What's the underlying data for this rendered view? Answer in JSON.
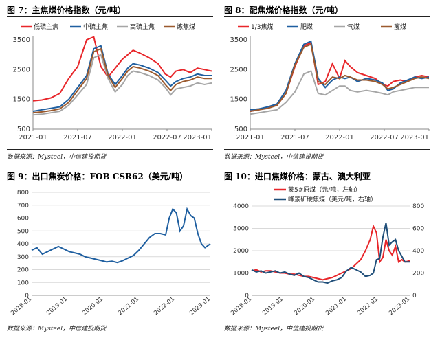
{
  "panels": [
    {
      "title": "图 7：主焦煤价格指数（元/吨）",
      "source": "数据来源：Mysteel，中信建投期货"
    },
    {
      "title": "图 8：配焦煤价格指数（元/吨）",
      "source": "数据来源：Mysteel，中信建投期货"
    },
    {
      "title": "图 9：出口焦炭价格：FOB CSR62（美元/吨）",
      "source": "数据来源：Mysteel，中信建投期货"
    },
    {
      "title": "图 10：进口焦煤价格：蒙古、澳大利亚",
      "source": "数据来源：Mysteel，中信建投期货"
    }
  ],
  "chart_data": [
    {
      "type": "line",
      "x_ticks": [
        "2021-01",
        "2021-07",
        "2022-01",
        "2022-07",
        "2023-01"
      ],
      "ylim": [
        500,
        3500
      ],
      "y_ticks": [
        500,
        1500,
        2500,
        3500
      ],
      "grid": false,
      "legend_position": "top",
      "x": [
        0,
        0.05,
        0.1,
        0.15,
        0.2,
        0.25,
        0.3,
        0.34,
        0.38,
        0.42,
        0.46,
        0.5,
        0.53,
        0.56,
        0.6,
        0.65,
        0.7,
        0.74,
        0.77,
        0.8,
        0.84,
        0.88,
        0.92,
        0.96,
        1.0
      ],
      "series": [
        {
          "name": "低硫主焦",
          "color": "#e8262a",
          "values": [
            1450,
            1480,
            1550,
            1700,
            2200,
            2600,
            3500,
            3600,
            2600,
            2250,
            2550,
            2850,
            3000,
            3150,
            3050,
            2900,
            2700,
            2350,
            2250,
            2450,
            2500,
            2400,
            2550,
            2500,
            2450
          ]
        },
        {
          "name": "中硫主焦",
          "color": "#1f5fa0",
          "values": [
            1100,
            1150,
            1200,
            1250,
            1500,
            1900,
            2300,
            3200,
            3300,
            2350,
            2000,
            2300,
            2550,
            2700,
            2650,
            2550,
            2400,
            2150,
            1950,
            2100,
            2200,
            2250,
            2350,
            2300,
            2300
          ]
        },
        {
          "name": "高硫主焦",
          "color": "#a6a6a6",
          "values": [
            980,
            1000,
            1050,
            1100,
            1300,
            1650,
            2000,
            2900,
            3000,
            2200,
            1750,
            2000,
            2300,
            2450,
            2400,
            2300,
            2150,
            1900,
            1650,
            1850,
            1900,
            1950,
            2050,
            2000,
            2050
          ]
        },
        {
          "name": "炼焦煤",
          "color": "#9b5a2e",
          "values": [
            1050,
            1080,
            1120,
            1180,
            1400,
            1800,
            2200,
            3100,
            3200,
            2300,
            1900,
            2200,
            2450,
            2600,
            2550,
            2450,
            2300,
            2000,
            1800,
            2000,
            2100,
            2150,
            2250,
            2200,
            2200
          ]
        }
      ]
    },
    {
      "type": "line",
      "x_ticks": [
        "2021-01",
        "2021-07",
        "2022-01",
        "2022-07",
        "2023-01"
      ],
      "ylim": [
        500,
        3500
      ],
      "y_ticks": [
        500,
        1500,
        2500,
        3500
      ],
      "grid": false,
      "legend_position": "top",
      "x": [
        0,
        0.05,
        0.1,
        0.15,
        0.2,
        0.25,
        0.3,
        0.34,
        0.38,
        0.42,
        0.46,
        0.5,
        0.53,
        0.56,
        0.6,
        0.65,
        0.7,
        0.74,
        0.77,
        0.8,
        0.84,
        0.88,
        0.92,
        0.96,
        1.0
      ],
      "series": [
        {
          "name": "1/3焦煤",
          "color": "#e8262a",
          "values": [
            1100,
            1150,
            1250,
            1300,
            1700,
            2600,
            3300,
            3400,
            2000,
            2100,
            2700,
            2200,
            2800,
            2600,
            2400,
            2300,
            2200,
            2000,
            1950,
            2100,
            2150,
            2100,
            2250,
            2300,
            2250
          ]
        },
        {
          "name": "肥煤",
          "color": "#1f5fa0",
          "values": [
            1150,
            1180,
            1250,
            1350,
            1800,
            2700,
            3350,
            3450,
            2200,
            1900,
            2150,
            2250,
            2200,
            2250,
            2100,
            2200,
            2150,
            2050,
            1800,
            1850,
            2050,
            2150,
            2250,
            2200,
            2250
          ]
        },
        {
          "name": "气煤",
          "color": "#a6a6a6",
          "values": [
            1000,
            1050,
            1100,
            1150,
            1400,
            1750,
            2350,
            2450,
            1700,
            1650,
            1800,
            1950,
            1950,
            1800,
            1750,
            1800,
            1750,
            1700,
            1650,
            1750,
            1800,
            1850,
            1900,
            1900,
            1900
          ]
        },
        {
          "name": "瘦煤",
          "color": "#9b5a2e",
          "values": [
            1100,
            1150,
            1200,
            1300,
            1700,
            2650,
            3250,
            3350,
            2100,
            2000,
            2250,
            2200,
            2300,
            2250,
            2150,
            2150,
            2100,
            2000,
            1850,
            1900,
            2000,
            2100,
            2200,
            2250,
            2200
          ]
        }
      ]
    },
    {
      "type": "line",
      "x_ticks": [
        "2018-01",
        "2019-01",
        "2020-01",
        "2021-01",
        "2022-01",
        "2023-01"
      ],
      "ylim": [
        0,
        800
      ],
      "y_ticks": [
        0,
        100,
        200,
        300,
        400,
        500,
        600,
        700,
        800
      ],
      "grid": true,
      "x": [
        0,
        0.03,
        0.06,
        0.09,
        0.12,
        0.15,
        0.18,
        0.21,
        0.24,
        0.27,
        0.3,
        0.33,
        0.36,
        0.39,
        0.42,
        0.45,
        0.48,
        0.51,
        0.54,
        0.57,
        0.6,
        0.63,
        0.66,
        0.69,
        0.72,
        0.75,
        0.77,
        0.79,
        0.81,
        0.83,
        0.85,
        0.87,
        0.89,
        0.91,
        0.93,
        0.95,
        0.97,
        1.0
      ],
      "series": [
        {
          "name": "FOB CSR62",
          "color": "#1f5fa0",
          "values": [
            350,
            370,
            320,
            340,
            360,
            380,
            360,
            340,
            330,
            320,
            300,
            290,
            280,
            270,
            260,
            265,
            255,
            270,
            290,
            310,
            350,
            400,
            450,
            480,
            480,
            470,
            600,
            670,
            640,
            500,
            540,
            670,
            620,
            600,
            480,
            400,
            370,
            400
          ]
        }
      ]
    },
    {
      "type": "line",
      "x_ticks": [
        "2018-01",
        "2019-01",
        "2020-01",
        "2021-01",
        "2022-01",
        "2023-01"
      ],
      "ylim_left": [
        0,
        4000
      ],
      "y_ticks_left": [
        0,
        1000,
        2000,
        3000,
        4000
      ],
      "ylim_right": [
        0,
        800
      ],
      "y_ticks_right": [
        0,
        200,
        400,
        600,
        800
      ],
      "grid": true,
      "legend_position": "top",
      "x": [
        0,
        0.03,
        0.06,
        0.09,
        0.12,
        0.15,
        0.18,
        0.21,
        0.24,
        0.27,
        0.3,
        0.33,
        0.36,
        0.39,
        0.42,
        0.45,
        0.48,
        0.51,
        0.54,
        0.57,
        0.6,
        0.63,
        0.66,
        0.69,
        0.72,
        0.75,
        0.77,
        0.79,
        0.81,
        0.83,
        0.85,
        0.87,
        0.89,
        0.91,
        0.93,
        0.95,
        0.97,
        1.0
      ],
      "series": [
        {
          "name": "蒙5#原煤（元/吨，左轴）",
          "axis": "left",
          "color": "#e8262a",
          "values": [
            1100,
            1150,
            1050,
            1100,
            1100,
            1050,
            1000,
            1000,
            950,
            950,
            900,
            850,
            850,
            800,
            750,
            700,
            750,
            800,
            900,
            1000,
            1100,
            1200,
            1400,
            1600,
            2000,
            2500,
            3100,
            2800,
            1500,
            1700,
            2500,
            2000,
            1800,
            2200,
            1500,
            1600,
            1500,
            1550
          ]
        },
        {
          "name": "峰景矿硬焦煤（美元/吨，右轴）",
          "axis": "right",
          "color": "#1f4e79",
          "values": [
            230,
            210,
            220,
            200,
            210,
            220,
            200,
            210,
            190,
            180,
            200,
            170,
            160,
            140,
            120,
            120,
            110,
            130,
            140,
            160,
            220,
            250,
            230,
            210,
            170,
            180,
            200,
            320,
            330,
            520,
            650,
            450,
            480,
            500,
            400,
            350,
            300,
            300
          ]
        }
      ]
    }
  ]
}
